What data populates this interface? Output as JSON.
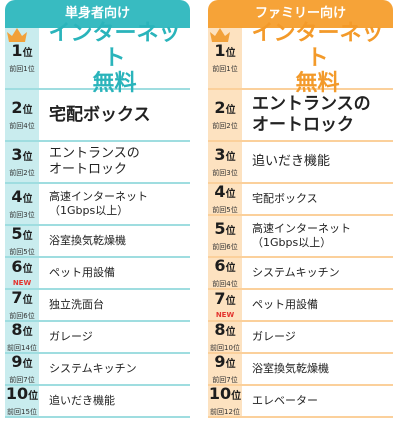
{
  "single": {
    "header": "単身者向け",
    "rows": [
      {
        "rank": "1",
        "unit": "位",
        "prev": "前回1位",
        "label": "インターネット",
        "label2": "無料"
      },
      {
        "rank": "2",
        "unit": "位",
        "prev": "前回4位",
        "label": "宅配ボックス"
      },
      {
        "rank": "3",
        "unit": "位",
        "prev": "前回2位",
        "label": "エントランスの",
        "label2": "オートロック"
      },
      {
        "rank": "4",
        "unit": "位",
        "prev": "前回3位",
        "label": "高速インターネット",
        "label2": "（1Gbps以上）"
      },
      {
        "rank": "5",
        "unit": "位",
        "prev": "前回5位",
        "label": "浴室換気乾燥機"
      },
      {
        "rank": "6",
        "unit": "位",
        "prev": "NEW",
        "label": "ペット用設備"
      },
      {
        "rank": "7",
        "unit": "位",
        "prev": "前回6位",
        "label": "独立洗面台"
      },
      {
        "rank": "8",
        "unit": "位",
        "prev": "前回14位",
        "label": "ガレージ"
      },
      {
        "rank": "9",
        "unit": "位",
        "prev": "前回7位",
        "label": "システムキッチン"
      },
      {
        "rank": "10",
        "unit": "位",
        "prev": "前回15位",
        "label": "追いだき機能"
      }
    ]
  },
  "family": {
    "header": "ファミリー向け",
    "rows": [
      {
        "rank": "1",
        "unit": "位",
        "prev": "前回1位",
        "label": "インターネット",
        "label2": "無料"
      },
      {
        "rank": "2",
        "unit": "位",
        "prev": "前回2位",
        "label": "エントランスの",
        "label2": "オートロック"
      },
      {
        "rank": "3",
        "unit": "位",
        "prev": "前回3位",
        "label": "追いだき機能"
      },
      {
        "rank": "4",
        "unit": "位",
        "prev": "前回5位",
        "label": "宅配ボックス"
      },
      {
        "rank": "5",
        "unit": "位",
        "prev": "前回6位",
        "label": "高速インターネット",
        "label2": "（1Gbps以上）"
      },
      {
        "rank": "6",
        "unit": "位",
        "prev": "前回4位",
        "label": "システムキッチン"
      },
      {
        "rank": "7",
        "unit": "位",
        "prev": "NEW",
        "label": "ペット用設備"
      },
      {
        "rank": "8",
        "unit": "位",
        "prev": "前回10位",
        "label": "ガレージ"
      },
      {
        "rank": "9",
        "unit": "位",
        "prev": "前回7位",
        "label": "浴室換気乾燥機"
      },
      {
        "rank": "10",
        "unit": "位",
        "prev": "前回12位",
        "label": "エレベーター"
      }
    ]
  }
}
